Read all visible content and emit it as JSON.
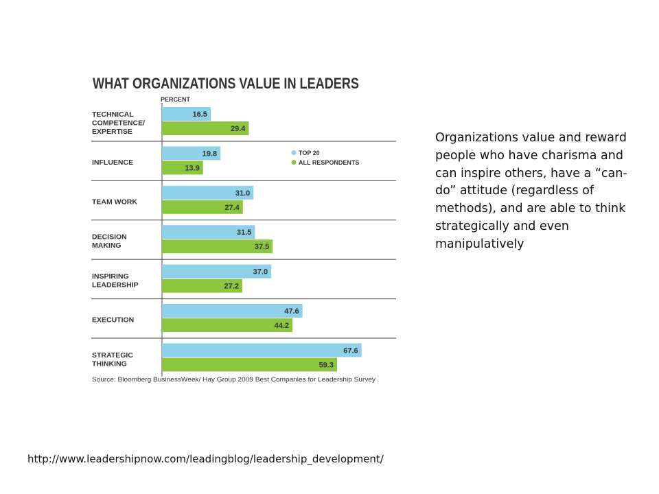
{
  "slide": {
    "body_text": "Organizations value and reward people who have charisma and can inspire others, have a “can-do” attitude (regardless of methods), and are able to think strategically and even manipulatively",
    "url": "http://www.leadershipnow.com/leadingblog/leadership_development/"
  },
  "chart_data": {
    "type": "bar",
    "orientation": "horizontal",
    "title": "WHAT ORGANIZATIONS VALUE IN LEADERS",
    "xlabel": "PERCENT",
    "ylabel": "",
    "source": "Source: Bloomberg BusinessWeek/ Hay Group 2009 Best Companies for Leadership Survey",
    "categories": [
      [
        "TECHNICAL",
        "COMPETENCE/",
        "EXPERTISE"
      ],
      [
        "INFLUENCE"
      ],
      [
        "TEAM WORK"
      ],
      [
        "DECISION",
        "MAKING"
      ],
      [
        "INSPIRING",
        "LEADERSHIP"
      ],
      [
        "EXECUTION"
      ],
      [
        "STRATEGIC",
        "THINKING"
      ]
    ],
    "series": [
      {
        "name": "TOP 20",
        "color": "#8fd1e8",
        "values": [
          16.5,
          19.8,
          31.0,
          31.5,
          37.0,
          47.6,
          67.6
        ]
      },
      {
        "name": "ALL RESPONDENTS",
        "color": "#8cc63f",
        "values": [
          29.4,
          13.9,
          27.4,
          37.5,
          27.2,
          44.2,
          59.3
        ]
      }
    ],
    "legend_position": "right of bars, within second row",
    "grid": false
  }
}
